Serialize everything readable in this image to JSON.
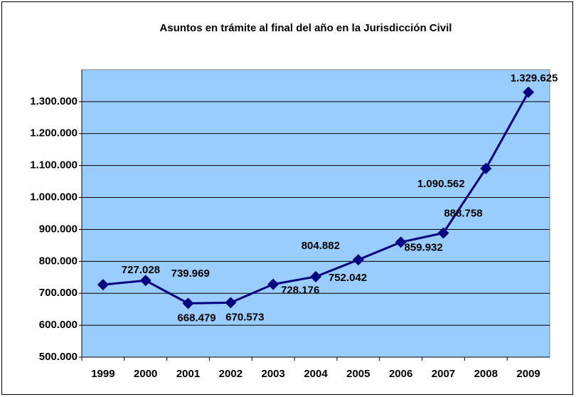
{
  "chart_data": {
    "type": "line",
    "title": "Asuntos en trámite al final del año en la Jurisdicción Civil",
    "categories": [
      "1999",
      "2000",
      "2001",
      "2002",
      "2003",
      "2004",
      "2005",
      "2006",
      "2007",
      "2008",
      "2009"
    ],
    "series": [
      {
        "color": "#000080",
        "values": [
          727028,
          739969,
          668479,
          670573,
          728176,
          752042,
          804882,
          859932,
          888758,
          1090562,
          1329625
        ],
        "value_labels": [
          "727.028",
          "739.969",
          "668.479",
          "670.573",
          "728.176",
          "752.042",
          "804.882",
          "859.932",
          "888.758",
          "1.090.562",
          "1.329.625"
        ]
      }
    ],
    "ylim": [
      500000,
      1400000
    ],
    "yticks": [
      {
        "value": 500000,
        "label": "500.000"
      },
      {
        "value": 600000,
        "label": "600.000"
      },
      {
        "value": 700000,
        "label": "700.000"
      },
      {
        "value": 800000,
        "label": "800.000"
      },
      {
        "value": 900000,
        "label": "900.000"
      },
      {
        "value": 1000000,
        "label": "1.000.000"
      },
      {
        "value": 1100000,
        "label": "1.100.000"
      },
      {
        "value": 1200000,
        "label": "1.200.000"
      },
      {
        "value": 1300000,
        "label": "1.300.000"
      }
    ],
    "grid": true,
    "plot_background": "#99ccff"
  }
}
